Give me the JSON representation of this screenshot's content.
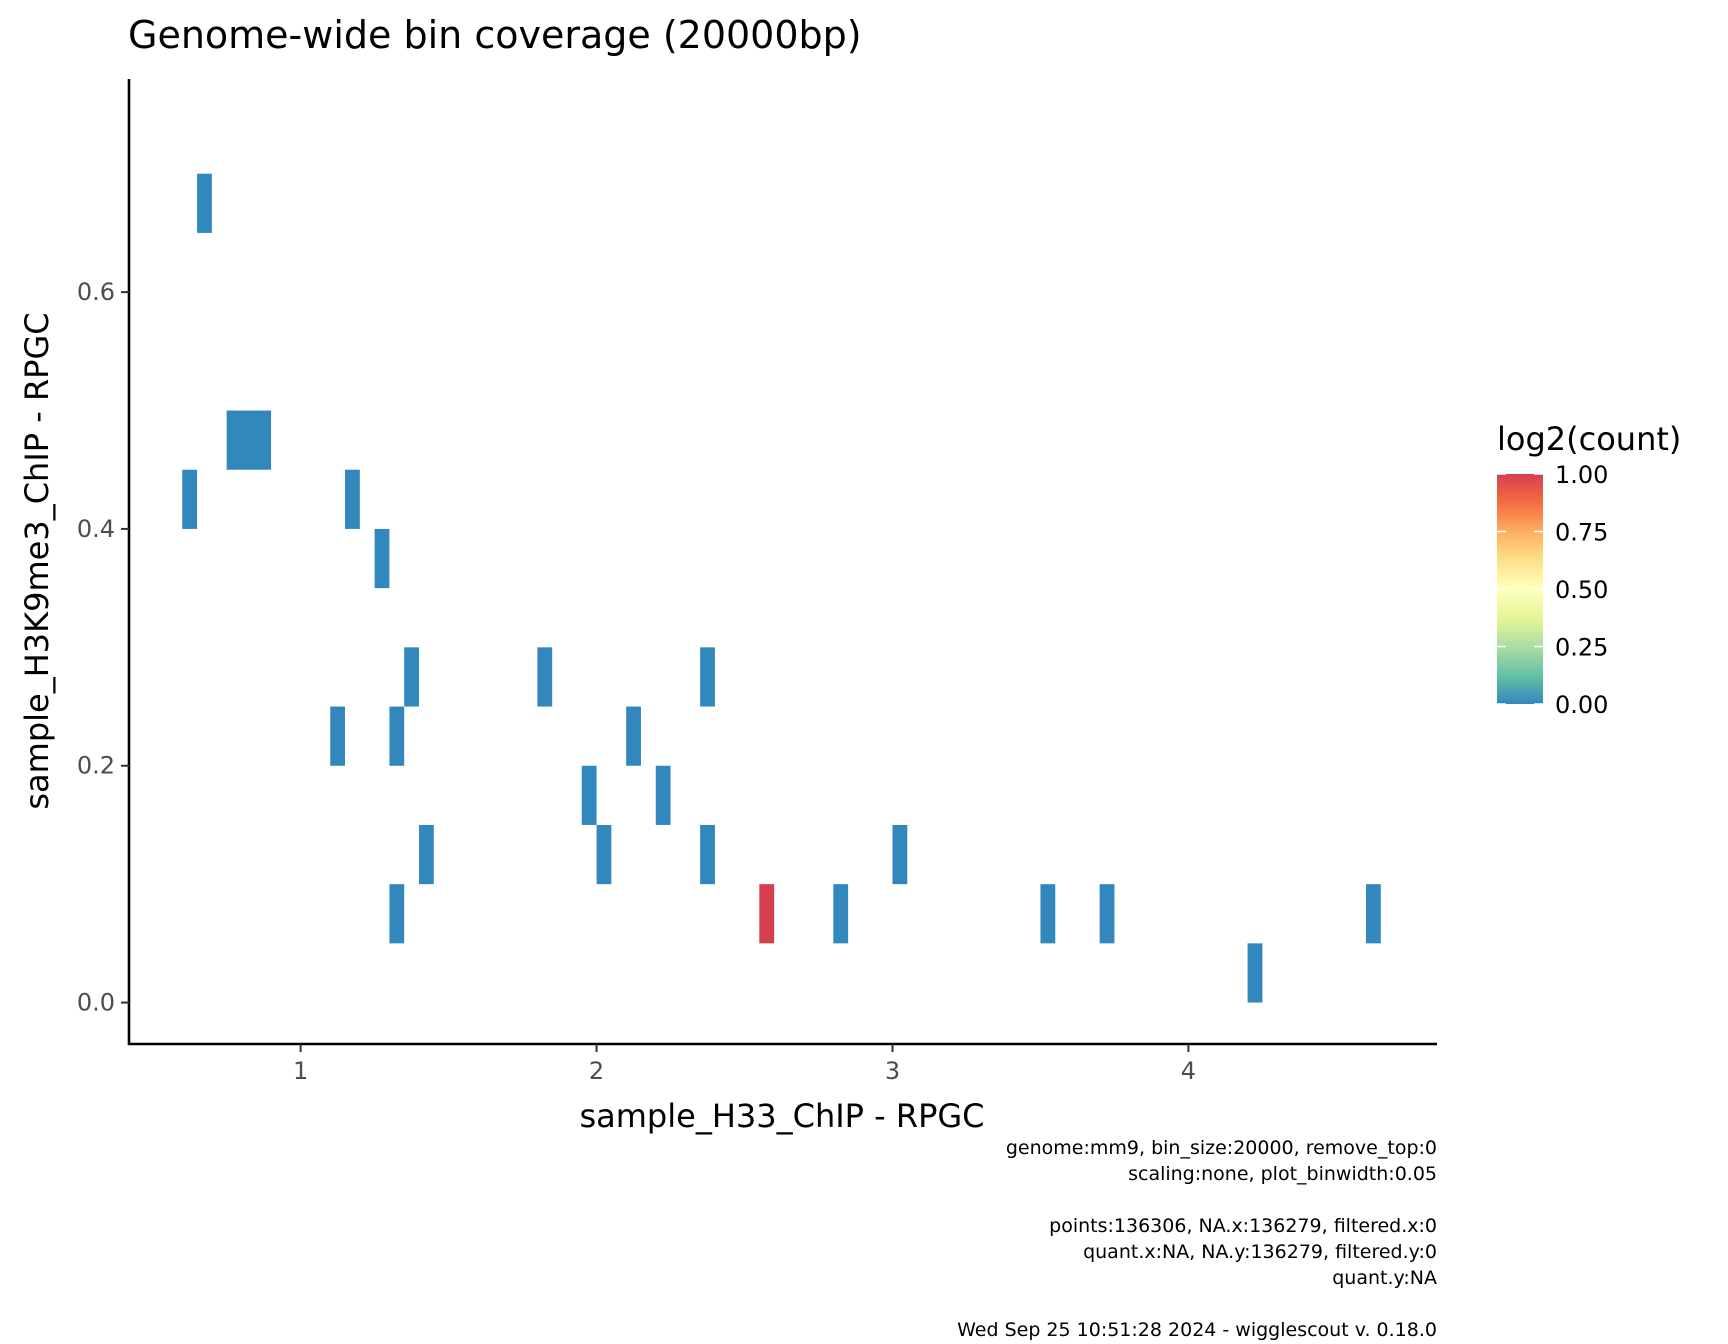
{
  "chart_data": {
    "type": "heatmap",
    "title": "Genome-wide bin coverage (20000bp)",
    "xlabel": "sample_H33_ChIP - RPGC",
    "ylabel": "sample_H3K9me3_ChIP - RPGC",
    "xlim": [
      0.42,
      4.84
    ],
    "ylim": [
      -0.035,
      0.78
    ],
    "x_ticks": [
      {
        "value": 1,
        "label": "1"
      },
      {
        "value": 2,
        "label": "2"
      },
      {
        "value": 3,
        "label": "3"
      },
      {
        "value": 4,
        "label": "4"
      }
    ],
    "y_ticks": [
      {
        "value": 0.0,
        "label": "0.0"
      },
      {
        "value": 0.2,
        "label": "0.2"
      },
      {
        "value": 0.4,
        "label": "0.4"
      },
      {
        "value": 0.6,
        "label": "0.6"
      }
    ],
    "grid": false,
    "legend": {
      "title": "log2(count)",
      "position": "right",
      "range": [
        0,
        1
      ],
      "labels": [
        "1.00",
        "0.75",
        "0.50",
        "0.25",
        "0.00"
      ],
      "colors": [
        "#d53e4f",
        "#f46d43",
        "#fdae61",
        "#fee08b",
        "#ffffbf",
        "#e6f598",
        "#abdda4",
        "#66c2a5",
        "#3288bd"
      ]
    },
    "cells": [
      {
        "x0": 0.65,
        "x1": 0.7,
        "y0": 0.65,
        "y1": 0.7,
        "value": 0
      },
      {
        "x0": 0.75,
        "x1": 0.9,
        "y0": 0.45,
        "y1": 0.5,
        "value": 0
      },
      {
        "x0": 0.6,
        "x1": 0.65,
        "y0": 0.4,
        "y1": 0.45,
        "value": 0
      },
      {
        "x0": 1.15,
        "x1": 1.2,
        "y0": 0.4,
        "y1": 0.45,
        "value": 0
      },
      {
        "x0": 1.25,
        "x1": 1.3,
        "y0": 0.35,
        "y1": 0.4,
        "value": 0
      },
      {
        "x0": 1.35,
        "x1": 1.4,
        "y0": 0.25,
        "y1": 0.3,
        "value": 0
      },
      {
        "x0": 1.8,
        "x1": 1.85,
        "y0": 0.25,
        "y1": 0.3,
        "value": 0
      },
      {
        "x0": 2.35,
        "x1": 2.4,
        "y0": 0.25,
        "y1": 0.3,
        "value": 0
      },
      {
        "x0": 1.1,
        "x1": 1.15,
        "y0": 0.2,
        "y1": 0.25,
        "value": 0
      },
      {
        "x0": 1.3,
        "x1": 1.35,
        "y0": 0.2,
        "y1": 0.25,
        "value": 0
      },
      {
        "x0": 2.1,
        "x1": 2.15,
        "y0": 0.2,
        "y1": 0.25,
        "value": 0
      },
      {
        "x0": 1.95,
        "x1": 2.0,
        "y0": 0.15,
        "y1": 0.2,
        "value": 0
      },
      {
        "x0": 2.2,
        "x1": 2.25,
        "y0": 0.15,
        "y1": 0.2,
        "value": 0
      },
      {
        "x0": 1.4,
        "x1": 1.45,
        "y0": 0.1,
        "y1": 0.15,
        "value": 0
      },
      {
        "x0": 2.0,
        "x1": 2.05,
        "y0": 0.1,
        "y1": 0.15,
        "value": 0
      },
      {
        "x0": 2.35,
        "x1": 2.4,
        "y0": 0.1,
        "y1": 0.15,
        "value": 0
      },
      {
        "x0": 3.0,
        "x1": 3.05,
        "y0": 0.1,
        "y1": 0.15,
        "value": 0
      },
      {
        "x0": 1.3,
        "x1": 1.35,
        "y0": 0.05,
        "y1": 0.1,
        "value": 0
      },
      {
        "x0": 2.55,
        "x1": 2.6,
        "y0": 0.05,
        "y1": 0.1,
        "value": 1
      },
      {
        "x0": 2.8,
        "x1": 2.85,
        "y0": 0.05,
        "y1": 0.1,
        "value": 0
      },
      {
        "x0": 3.5,
        "x1": 3.55,
        "y0": 0.05,
        "y1": 0.1,
        "value": 0
      },
      {
        "x0": 3.7,
        "x1": 3.75,
        "y0": 0.05,
        "y1": 0.1,
        "value": 0
      },
      {
        "x0": 4.6,
        "x1": 4.65,
        "y0": 0.05,
        "y1": 0.1,
        "value": 0
      },
      {
        "x0": 4.2,
        "x1": 4.25,
        "y0": 0.0,
        "y1": 0.05,
        "value": 0
      }
    ]
  },
  "caption": {
    "lines": [
      "genome:mm9, bin_size:20000, remove_top:0",
      "scaling:none, plot_binwidth:0.05",
      "",
      "points:136306, NA.x:136279, filtered.x:0",
      "quant.x:NA, NA.y:136279, filtered.y:0",
      "quant.y:NA",
      "",
      "Wed Sep 25 10:51:28 2024 - wigglescout v. 0.18.0"
    ]
  }
}
